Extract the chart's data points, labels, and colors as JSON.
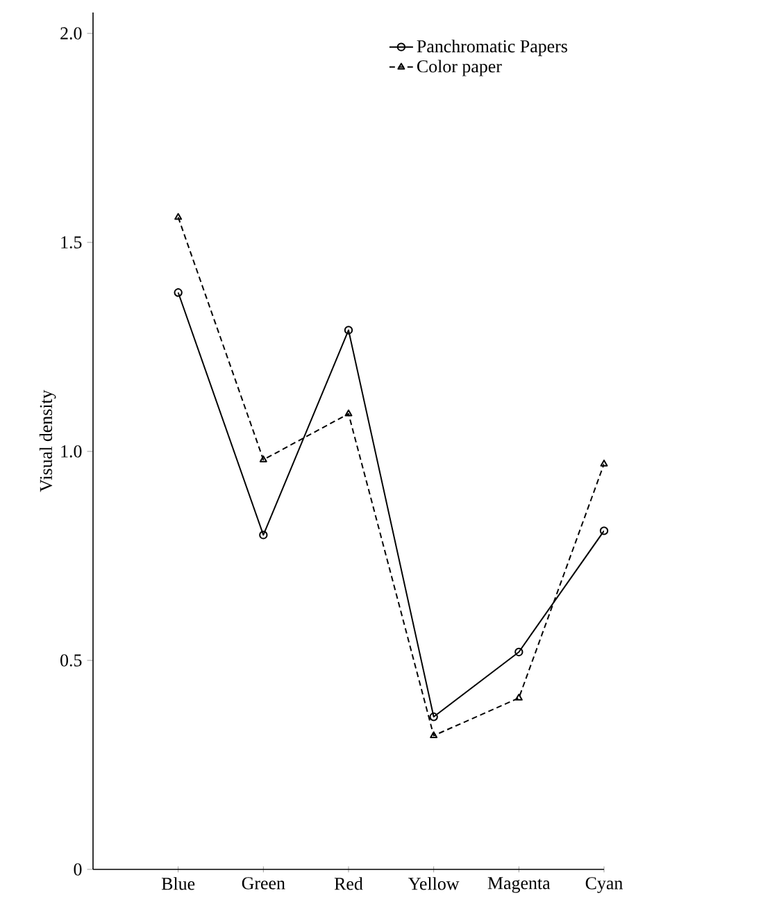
{
  "chart_data": {
    "type": "line",
    "ylabel": "Visual density",
    "categories": [
      "Blue",
      "Green",
      "Red",
      "Yellow",
      "Magenta",
      "Cyan"
    ],
    "series": [
      {
        "name": "Panchromatic Papers",
        "color": "#000000",
        "marker": "circle",
        "line_style": "solid",
        "values": [
          1.38,
          0.8,
          1.29,
          0.365,
          0.52,
          0.81
        ]
      },
      {
        "name": "Color paper",
        "color": "#000000",
        "marker": "triangle",
        "line_style": "dashed",
        "values": [
          1.56,
          0.98,
          1.09,
          0.32,
          0.41,
          0.97
        ]
      }
    ],
    "ylim": [
      0,
      2.05
    ],
    "yticks": [
      0,
      0.5,
      {
        "value": 1,
        "label": "1.0"
      },
      1.5,
      {
        "value": 2,
        "label": "2.0"
      }
    ],
    "grid": false,
    "legend": "top right"
  }
}
